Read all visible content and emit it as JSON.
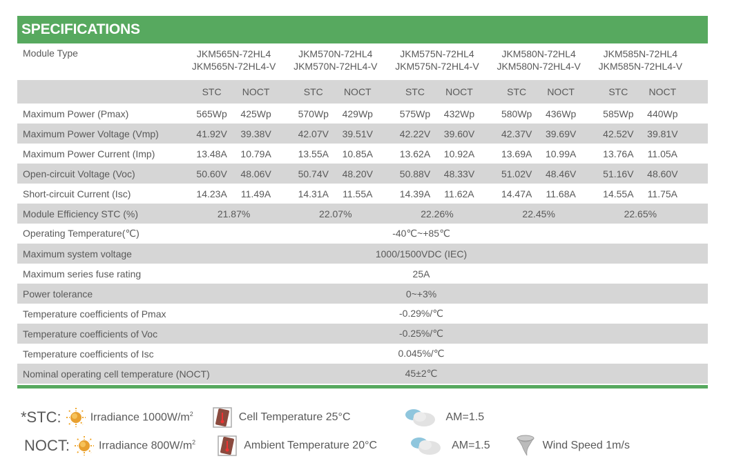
{
  "title": "SPECIFICATIONS",
  "module_type_label": "Module Type",
  "modules": [
    {
      "line1": "JKM565N-72HL4",
      "line2": "JKM565N-72HL4-V"
    },
    {
      "line1": "JKM570N-72HL4",
      "line2": "JKM570N-72HL4-V"
    },
    {
      "line1": "JKM575N-72HL4",
      "line2": "JKM575N-72HL4-V"
    },
    {
      "line1": "JKM580N-72HL4",
      "line2": "JKM580N-72HL4-V"
    },
    {
      "line1": "JKM585N-72HL4",
      "line2": "JKM585N-72HL4-V"
    }
  ],
  "condition_headers": {
    "stc": "STC",
    "noct": "NOCT"
  },
  "per_module_rows": [
    {
      "label": "Maximum Power (Pmax)",
      "values": [
        [
          "565Wp",
          "425Wp"
        ],
        [
          "570Wp",
          "429Wp"
        ],
        [
          "575Wp",
          "432Wp"
        ],
        [
          "580Wp",
          "436Wp"
        ],
        [
          "585Wp",
          "440Wp"
        ]
      ]
    },
    {
      "label": "Maximum Power Voltage (Vmp)",
      "values": [
        [
          "41.92V",
          "39.38V"
        ],
        [
          "42.07V",
          "39.51V"
        ],
        [
          "42.22V",
          "39.60V"
        ],
        [
          "42.37V",
          "39.69V"
        ],
        [
          "42.52V",
          "39.81V"
        ]
      ]
    },
    {
      "label": "Maximum Power Current (Imp)",
      "values": [
        [
          "13.48A",
          "10.79A"
        ],
        [
          "13.55A",
          "10.85A"
        ],
        [
          "13.62A",
          "10.92A"
        ],
        [
          "13.69A",
          "10.99A"
        ],
        [
          "13.76A",
          "11.05A"
        ]
      ]
    },
    {
      "label": "Open-circuit Voltage (Voc)",
      "values": [
        [
          "50.60V",
          "48.06V"
        ],
        [
          "50.74V",
          "48.20V"
        ],
        [
          "50.88V",
          "48.33V"
        ],
        [
          "51.02V",
          "48.46V"
        ],
        [
          "51.16V",
          "48.60V"
        ]
      ]
    },
    {
      "label": "Short-circuit Current (Isc)",
      "values": [
        [
          "14.23A",
          "11.49A"
        ],
        [
          "14.31A",
          "11.55A"
        ],
        [
          "14.39A",
          "11.62A"
        ],
        [
          "14.47A",
          "11.68A"
        ],
        [
          "14.55A",
          "11.75A"
        ]
      ]
    }
  ],
  "efficiency_row": {
    "label": "Module Efficiency STC (%)",
    "values": [
      "21.87%",
      "22.07%",
      "22.26%",
      "22.45%",
      "22.65%"
    ]
  },
  "common_rows": [
    {
      "label": "Operating Temperature(℃)",
      "value": "-40℃~+85℃"
    },
    {
      "label": "Maximum system voltage",
      "value": "1000/1500VDC (IEC)"
    },
    {
      "label": "Maximum series fuse rating",
      "value": "25A"
    },
    {
      "label": "Power tolerance",
      "value": "0~+3%"
    },
    {
      "label": "Temperature coefficients of Pmax",
      "value": "-0.29%/℃"
    },
    {
      "label": "Temperature coefficients of Voc",
      "value": "-0.25%/℃"
    },
    {
      "label": "Temperature coefficients of Isc",
      "value": "0.045%/℃"
    },
    {
      "label": "Nominal operating cell temperature  (NOCT)",
      "value": "45±2℃"
    }
  ],
  "legend": {
    "stc": {
      "tag": "*STC:",
      "irradiance": "Irradiance 1000W/m",
      "temperature": "Cell Temperature 25°C",
      "am": "AM=1.5"
    },
    "noct": {
      "tag": "NOCT:",
      "irradiance": "Irradiance 800W/m",
      "temperature": "Ambient Temperature 20°C",
      "am": "AM=1.5",
      "wind": "Wind Speed 1m/s"
    },
    "sup": "2"
  },
  "colors": {
    "accent_green": "#57a95f",
    "row_gray": "#d6d6d6",
    "text": "#595959"
  }
}
